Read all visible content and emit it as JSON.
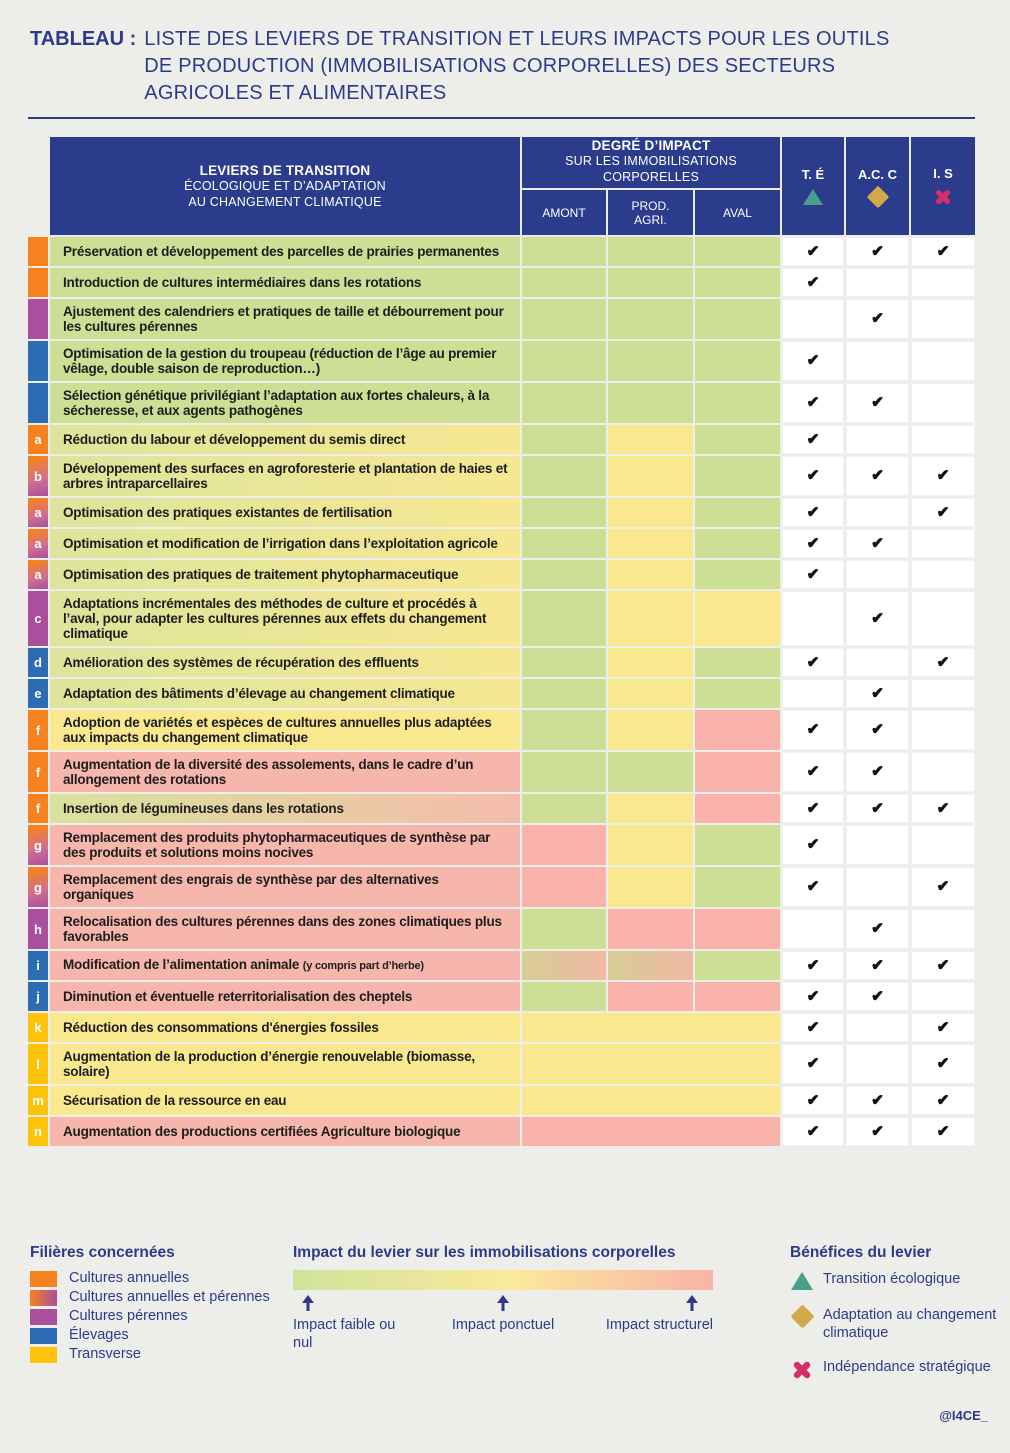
{
  "title": {
    "label": "TABLEAU :",
    "lines": [
      "LISTE DES LEVIERS DE TRANSITION ET LEURS IMPACTS POUR LES OUTILS",
      "DE PRODUCTION (IMMOBILISATIONS CORPORELLES) DES SECTEURS",
      "AGRICOLES ET ALIMENTAIRES"
    ]
  },
  "palette": {
    "navy": "#2d3a8c",
    "header_blue": "#2c3c8c",
    "cell_green": "#cdde95",
    "cell_yellow": "#fae88f",
    "cell_pink": "#f8b2a9",
    "tag_orange": "#f5821f",
    "tag_purple": "#a94f9e",
    "tag_blue": "#2b6cb3",
    "tag_yellow": "#fdc30b",
    "triangle_green": "#4a9e8a",
    "diamond_gold": "#d1a94a",
    "cross_pink": "#d52e6b",
    "page_bg": "#edeeea"
  },
  "table": {
    "header": {
      "leviers": {
        "title": "LEVIERS DE TRANSITION",
        "sub1": "ÉCOLOGIQUE ET D’ADAPTATION",
        "sub2": "AU CHANGEMENT CLIMATIQUE"
      },
      "degre": {
        "title": "DEGRÉ D’IMPACT",
        "sub1": "SUR LES IMMOBILISATIONS",
        "sub2": "CORPORELLES",
        "cols": [
          "AMONT",
          "PROD. AGRI.",
          "AVAL"
        ]
      },
      "benefit_cols": [
        {
          "abbr": "T. É",
          "icon": "triangle-icon"
        },
        {
          "abbr": "A.C. C",
          "icon": "diamond-icon"
        },
        {
          "abbr": "I. S",
          "icon": "cross-icon"
        }
      ]
    },
    "rows": [
      {
        "letter": "",
        "filiere": "orange",
        "label": "Préservation et développement des parcelles de prairies permanentes",
        "text_bg": "green",
        "cells": [
          "green",
          "green",
          "green"
        ],
        "checks": [
          1,
          1,
          1
        ]
      },
      {
        "letter": "",
        "filiere": "orange",
        "label": "Introduction de cultures intermédiaires dans les rotations",
        "text_bg": "green",
        "cells": [
          "green",
          "green",
          "green"
        ],
        "checks": [
          1,
          0,
          0
        ]
      },
      {
        "letter": "",
        "filiere": "purple",
        "label": "Ajustement des calendriers et pratiques de taille et débourrement pour les cultures pérennes",
        "text_bg": "green",
        "cells": [
          "green",
          "green",
          "green"
        ],
        "checks": [
          0,
          1,
          0
        ]
      },
      {
        "letter": "",
        "filiere": "blue",
        "label": "Optimisation de la gestion du troupeau (réduction de l’âge au premier vêlage, double saison de reproduction…)",
        "text_bg": "green",
        "cells": [
          "green",
          "green",
          "green"
        ],
        "checks": [
          1,
          0,
          0
        ]
      },
      {
        "letter": "",
        "filiere": "blue",
        "label": "Sélection génétique privilégiant l’adaptation aux fortes chaleurs, à la sécheresse, et aux agents pathogènes",
        "text_bg": "green",
        "cells": [
          "green",
          "green",
          "green"
        ],
        "checks": [
          1,
          1,
          0
        ]
      },
      {
        "letter": "a",
        "filiere": "orange",
        "label": "Réduction du labour et développement du semis direct",
        "text_bg": "green_yellow",
        "cells": [
          "green",
          "yellow",
          "green"
        ],
        "checks": [
          1,
          0,
          0
        ]
      },
      {
        "letter": "b",
        "filiere": "mix",
        "label": "Développement des surfaces en agroforesterie et plantation de haies et arbres intraparcellaires",
        "text_bg": "green_yellow",
        "cells": [
          "green",
          "yellow",
          "green"
        ],
        "checks": [
          1,
          1,
          1
        ]
      },
      {
        "letter": "a",
        "filiere": "mix",
        "label": "Optimisation des pratiques existantes de fertilisation",
        "text_bg": "green_yellow",
        "cells": [
          "green",
          "yellow",
          "green"
        ],
        "checks": [
          1,
          0,
          1
        ]
      },
      {
        "letter": "a",
        "filiere": "mix",
        "label": "Optimisation et modification de l’irrigation dans l’exploitation agricole",
        "text_bg": "green_yellow",
        "cells": [
          "green",
          "yellow",
          "green"
        ],
        "checks": [
          1,
          1,
          0
        ]
      },
      {
        "letter": "a",
        "filiere": "mix",
        "label": "Optimisation des pratiques de traitement phytopharmaceutique",
        "text_bg": "green_yellow",
        "cells": [
          "green",
          "yellow",
          "green"
        ],
        "checks": [
          1,
          0,
          0
        ]
      },
      {
        "letter": "c",
        "filiere": "purple",
        "label": "Adaptations incrémentales des méthodes de culture et procédés à l’aval, pour adapter les cultures pérennes aux effets du changement climatique",
        "text_bg": "green_yellow",
        "cells": [
          "green",
          "yellow",
          "yellow"
        ],
        "checks": [
          0,
          1,
          0
        ]
      },
      {
        "letter": "d",
        "filiere": "blue",
        "label": "Amélioration des systèmes de récupération des effluents",
        "text_bg": "green_yellow",
        "cells": [
          "green",
          "yellow",
          "green"
        ],
        "checks": [
          1,
          0,
          1
        ]
      },
      {
        "letter": "e",
        "filiere": "blue",
        "label": "Adaptation des bâtiments d’élevage au changement climatique",
        "text_bg": "green_yellow",
        "cells": [
          "green",
          "yellow",
          "green"
        ],
        "checks": [
          0,
          1,
          0
        ]
      },
      {
        "letter": "f",
        "filiere": "orange",
        "label": "Adoption de variétés et espèces de cultures annuelles plus adaptées aux impacts du changement climatique",
        "text_bg": "yellow",
        "cells": [
          "green",
          "yellow",
          "pink"
        ],
        "checks": [
          1,
          1,
          0
        ]
      },
      {
        "letter": "f",
        "filiere": "orange",
        "label": "Augmentation de la diversité des assolements, dans le cadre d’un allongement des rotations",
        "text_bg": "pink",
        "cells": [
          "green",
          "green",
          "pink"
        ],
        "checks": [
          1,
          1,
          0
        ]
      },
      {
        "letter": "f",
        "filiere": "orange",
        "label": "Insertion de légumineuses dans les rotations",
        "text_bg": "green_pink",
        "cells": [
          "green",
          "yellow",
          "pink"
        ],
        "checks": [
          1,
          1,
          1
        ]
      },
      {
        "letter": "g",
        "filiere": "mix",
        "label": "Remplacement des produits phytopharmaceutiques de synthèse par des produits et solutions moins nocives",
        "text_bg": "pink",
        "cells": [
          "pink",
          "yellow",
          "green"
        ],
        "checks": [
          1,
          0,
          0
        ]
      },
      {
        "letter": "g",
        "filiere": "mix",
        "label": "Remplacement des engrais de synthèse par des alternatives organiques",
        "text_bg": "pink",
        "cells": [
          "pink",
          "yellow",
          "green"
        ],
        "checks": [
          1,
          0,
          1
        ]
      },
      {
        "letter": "h",
        "filiere": "purple",
        "label": "Relocalisation des cultures pérennes dans des zones climatiques plus favorables",
        "text_bg": "pink",
        "cells": [
          "green",
          "pink",
          "pink"
        ],
        "checks": [
          0,
          1,
          0
        ]
      },
      {
        "letter": "i",
        "filiere": "blue",
        "label": "Modification de l’alimentation animale",
        "label_small": "(y compris part d’herbe)",
        "text_bg": "pink",
        "cells": [
          "tan_pink",
          "tan_pink",
          "green"
        ],
        "checks": [
          1,
          1,
          1
        ]
      },
      {
        "letter": "j",
        "filiere": "blue",
        "label": "Diminution et éventuelle reterritorialisation des cheptels",
        "text_bg": "pink",
        "cells": [
          "green",
          "pink",
          "pink"
        ],
        "checks": [
          1,
          1,
          0
        ]
      },
      {
        "letter": "k",
        "filiere": "yellow",
        "label": "Réduction des consommations d'énergies fossiles",
        "text_bg": "yellow",
        "cells": [
          "yellow",
          "yellow",
          "yellow"
        ],
        "merged": true,
        "checks": [
          1,
          0,
          1
        ]
      },
      {
        "letter": "l",
        "filiere": "yellow",
        "label": "Augmentation de la production d’énergie renouvelable (biomasse, solaire)",
        "text_bg": "yellow",
        "cells": [
          "yellow",
          "yellow",
          "yellow"
        ],
        "merged": true,
        "checks": [
          1,
          0,
          1
        ]
      },
      {
        "letter": "m",
        "filiere": "yellow",
        "label": "Sécurisation de la ressource en eau",
        "text_bg": "yellow",
        "cells": [
          "yellow",
          "yellow",
          "yellow"
        ],
        "merged": true,
        "checks": [
          1,
          1,
          1
        ]
      },
      {
        "letter": "n",
        "filiere": "yellow",
        "label": "Augmentation des productions certifiées Agriculture biologique",
        "text_bg": "pink",
        "cells": [
          "pink",
          "pink",
          "pink"
        ],
        "merged": true,
        "checks": [
          1,
          1,
          1
        ]
      }
    ],
    "check_glyph": "✔"
  },
  "legend": {
    "filieres": {
      "title": "Filières concernées",
      "items": [
        {
          "label": "Cultures annuelles",
          "color": "#f5821f"
        },
        {
          "label": "Cultures annuelles et pérennes",
          "color": "gradient #f5821f → #a94f9e"
        },
        {
          "label": "Cultures pérennes",
          "color": "#a94f9e"
        },
        {
          "label": "Élevages",
          "color": "#2b6cb3"
        },
        {
          "label": "Transverse",
          "color": "#fdc30b"
        }
      ]
    },
    "impact": {
      "title": "Impact du levier sur les immobilisations corporelles",
      "labels": [
        "Impact faible ou nul",
        "Impact ponctuel",
        "Impact structurel"
      ],
      "gradient": [
        "#cfe39b",
        "#fbe99c",
        "#f8b3a8"
      ]
    },
    "benefices": {
      "title": "Bénéfices du levier",
      "items": [
        {
          "icon": "triangle-icon",
          "label": "Transition écologique"
        },
        {
          "icon": "diamond-icon",
          "label": "Adaptation au changement climatique"
        },
        {
          "icon": "cross-icon",
          "label": "Indépendance stratégique"
        }
      ]
    }
  },
  "credit": "@I4CE_"
}
